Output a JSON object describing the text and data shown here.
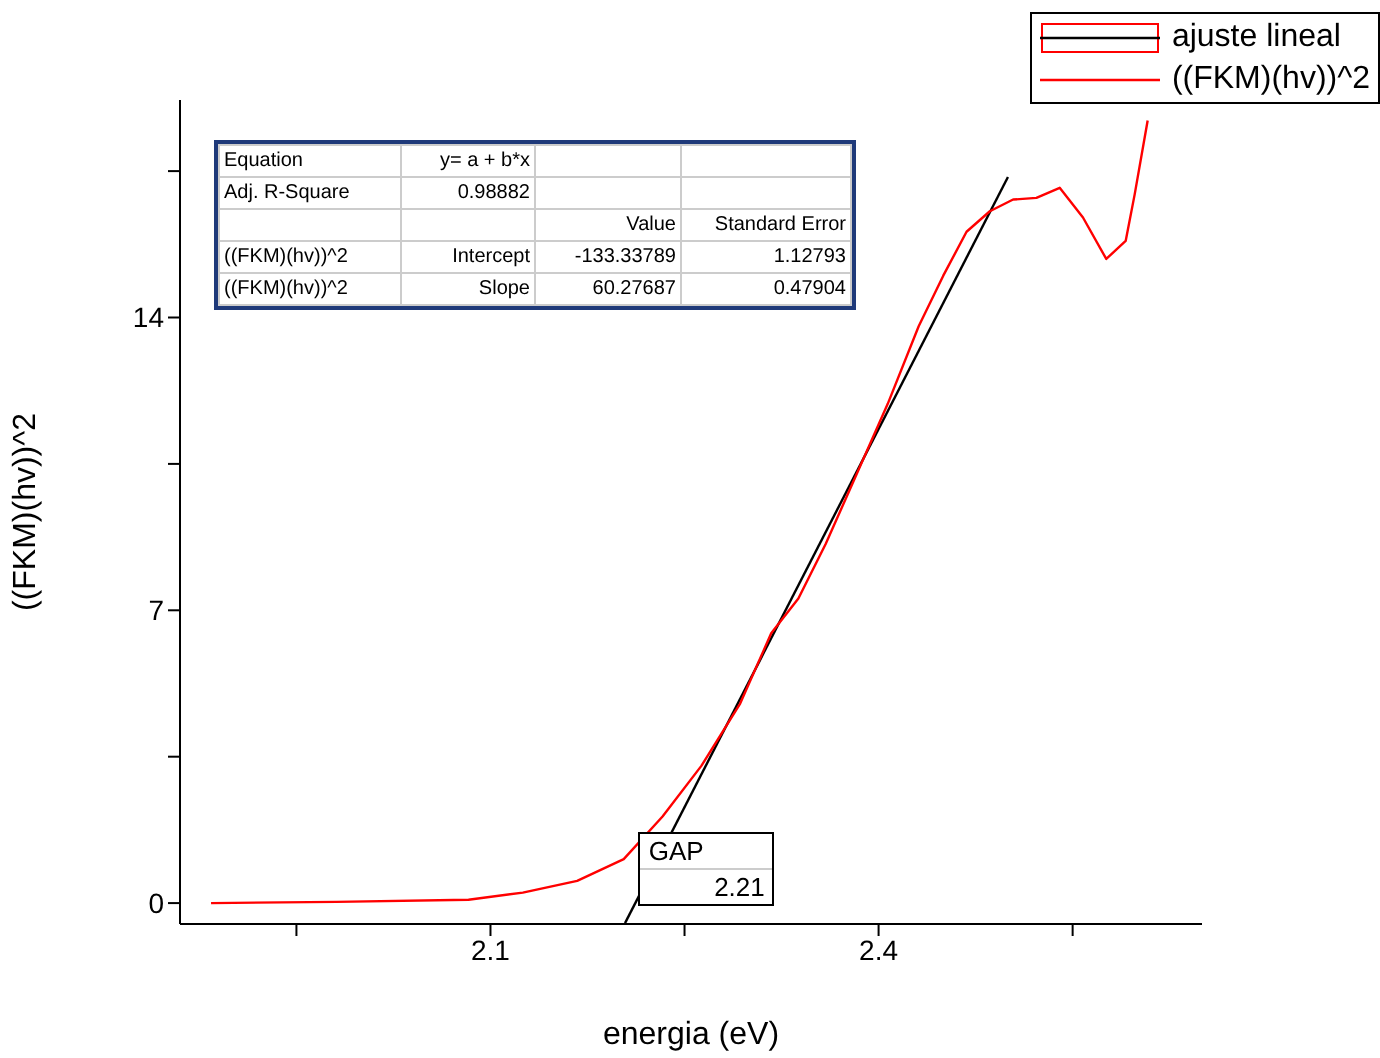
{
  "chart_data": {
    "type": "line",
    "xlabel": "energia (eV)",
    "ylabel": "((FKM)(hv))^2",
    "xlim": [
      1.86,
      2.65
    ],
    "ylim": [
      -0.5,
      19.2
    ],
    "xticks": [
      {
        "value": 1.95,
        "label": null
      },
      2.1,
      {
        "value": 2.25,
        "label": null
      },
      2.4,
      {
        "value": 2.55,
        "label": null
      }
    ],
    "yticks": [
      0,
      {
        "value": 3.5,
        "label": null
      },
      7,
      {
        "value": 10.5,
        "label": null
      },
      14,
      {
        "value": 17.5,
        "label": null
      }
    ],
    "legend": "top right",
    "marker": "none",
    "line_style": "solid",
    "series": [
      {
        "name": "ajuste lineal",
        "color": "#000000",
        "x": [
          2.204,
          2.5
        ],
        "values": [
          -0.48,
          17.36
        ]
      },
      {
        "name": "((FKM)(hv))^2",
        "color": "#ff0000",
        "x": [
          1.884,
          1.981,
          2.083,
          2.125,
          2.167,
          2.203,
          2.233,
          2.263,
          2.293,
          2.317,
          2.338,
          2.359,
          2.383,
          2.407,
          2.431,
          2.45,
          2.468,
          2.486,
          2.504,
          2.522,
          2.54,
          2.558,
          2.576,
          2.591,
          2.598,
          2.608
        ],
        "values": [
          0,
          0.03,
          0.08,
          0.25,
          0.53,
          1.05,
          2.07,
          3.28,
          4.77,
          6.45,
          7.28,
          8.58,
          10.25,
          11.93,
          13.79,
          15.0,
          16.05,
          16.54,
          16.82,
          16.86,
          17.1,
          16.39,
          15.4,
          15.83,
          16.95,
          18.71
        ]
      }
    ],
    "annotations": [
      "Equation",
      "y= a + b*x",
      "Adj. R-Square",
      "0.98882",
      "Value",
      "Standard Error",
      "((FKM)(hv))^2",
      "Intercept",
      "-133.33789",
      "1.12793",
      "((FKM)(hv))^2",
      "Slope",
      "60.27687",
      "0.47904",
      {
        "text": "GAP",
        "x": 2.21
      },
      "2.21"
    ]
  }
}
